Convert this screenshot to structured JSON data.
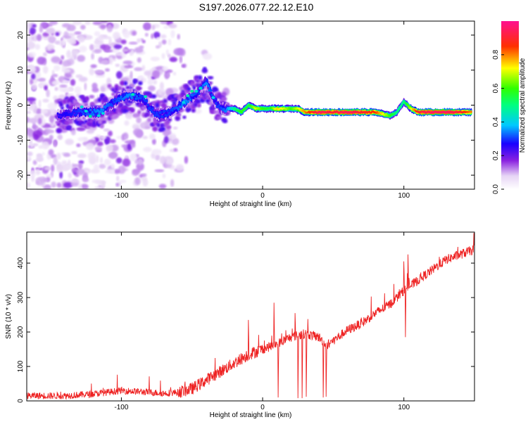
{
  "title": "S197.2026.077.22.12.E10",
  "colorbar": {
    "label": "Normalized spectral amplitude",
    "ticks": [
      "0.0",
      "0.2",
      "0.4",
      "0.6",
      "0.8"
    ],
    "tick_values": [
      0.0,
      0.2,
      0.4,
      0.6,
      0.8
    ],
    "range": [
      0,
      1
    ]
  },
  "chart_data": [
    {
      "type": "heatmap",
      "title": "S197.2026.077.22.12.E10",
      "xlabel": "Height of straight line (km)",
      "ylabel": "Frequency (Hz)",
      "xlim": [
        -167,
        150
      ],
      "ylim": [
        -24,
        24
      ],
      "xticks": [
        -100,
        0,
        100
      ],
      "xtick_labels": [
        "-100",
        "0",
        "100"
      ],
      "yticks": [
        -20,
        -10,
        0,
        10,
        20
      ],
      "ytick_labels": [
        "-20",
        "-10",
        "0",
        "10",
        "20"
      ],
      "colorscale": "rainbow (white-purple-blue-cyan-green-yellow-red-magenta)",
      "ridge": {
        "x": [
          -145,
          -130,
          -115,
          -105,
          -95,
          -85,
          -75,
          -65,
          -55,
          -45,
          -40,
          -35,
          -30,
          -25,
          -20,
          -15,
          -10,
          -5,
          0,
          5,
          10,
          15,
          20,
          25,
          30,
          40,
          50,
          60,
          70,
          80,
          90,
          95,
          100,
          105,
          110,
          120,
          130,
          140,
          148
        ],
        "y": [
          -3,
          -2,
          -2,
          1,
          3,
          2,
          -3,
          -2,
          1,
          4,
          7,
          2,
          -1,
          -1,
          -1,
          -2,
          0,
          -1,
          -1,
          -1,
          -1,
          -1,
          -1,
          -1,
          -2,
          -2,
          -2,
          -2,
          -2,
          -2,
          -3,
          -2,
          1,
          -1,
          -2,
          -2,
          -2,
          -2,
          -2
        ],
        "amplitude": [
          0.25,
          0.3,
          0.35,
          0.3,
          0.35,
          0.3,
          0.3,
          0.3,
          0.35,
          0.3,
          0.35,
          0.3,
          0.3,
          0.35,
          0.5,
          0.6,
          0.55,
          0.7,
          0.6,
          0.55,
          0.75,
          0.7,
          0.6,
          0.7,
          0.8,
          0.95,
          0.9,
          0.95,
          0.9,
          0.85,
          0.6,
          0.5,
          0.5,
          0.7,
          0.9,
          0.95,
          0.95,
          0.9,
          0.8
        ]
      },
      "background_noise_x_range": [
        -167,
        -55
      ]
    },
    {
      "type": "line",
      "xlabel": "Height of straight line (km)",
      "ylabel": "SNR (10 * v/v)",
      "xlim": [
        -167,
        150
      ],
      "ylim": [
        0,
        490
      ],
      "xticks": [
        -100,
        0,
        100
      ],
      "xtick_labels": [
        "-100",
        "0",
        "100"
      ],
      "yticks": [
        0,
        100,
        200,
        300,
        400
      ],
      "ytick_labels": [
        "0",
        "100",
        "200",
        "300",
        "400"
      ],
      "color": "#ee2222",
      "trend": {
        "x": [
          -167,
          -140,
          -120,
          -100,
          -80,
          -70,
          -60,
          -50,
          -40,
          -30,
          -20,
          -10,
          0,
          10,
          20,
          30,
          35,
          40,
          45,
          50,
          60,
          70,
          80,
          90,
          100,
          110,
          120,
          130,
          140,
          150
        ],
        "y": [
          15,
          15,
          20,
          30,
          25,
          22,
          25,
          35,
          60,
          85,
          110,
          135,
          150,
          165,
          185,
          195,
          190,
          185,
          160,
          175,
          205,
          225,
          255,
          280,
          320,
          350,
          380,
          410,
          425,
          440
        ]
      },
      "dips": [
        {
          "x": 11,
          "y": 10
        },
        {
          "x": 25,
          "y": 8
        },
        {
          "x": 28,
          "y": 8
        },
        {
          "x": 31,
          "y": 12
        },
        {
          "x": 43,
          "y": 10
        },
        {
          "x": 45,
          "y": 12
        },
        {
          "x": 101,
          "y": 185
        }
      ],
      "spikes": [
        {
          "x": -10,
          "y": 235
        },
        {
          "x": 8,
          "y": 285
        },
        {
          "x": 23,
          "y": 255
        },
        {
          "x": 100,
          "y": 405
        },
        {
          "x": 103,
          "y": 425
        }
      ]
    }
  ]
}
